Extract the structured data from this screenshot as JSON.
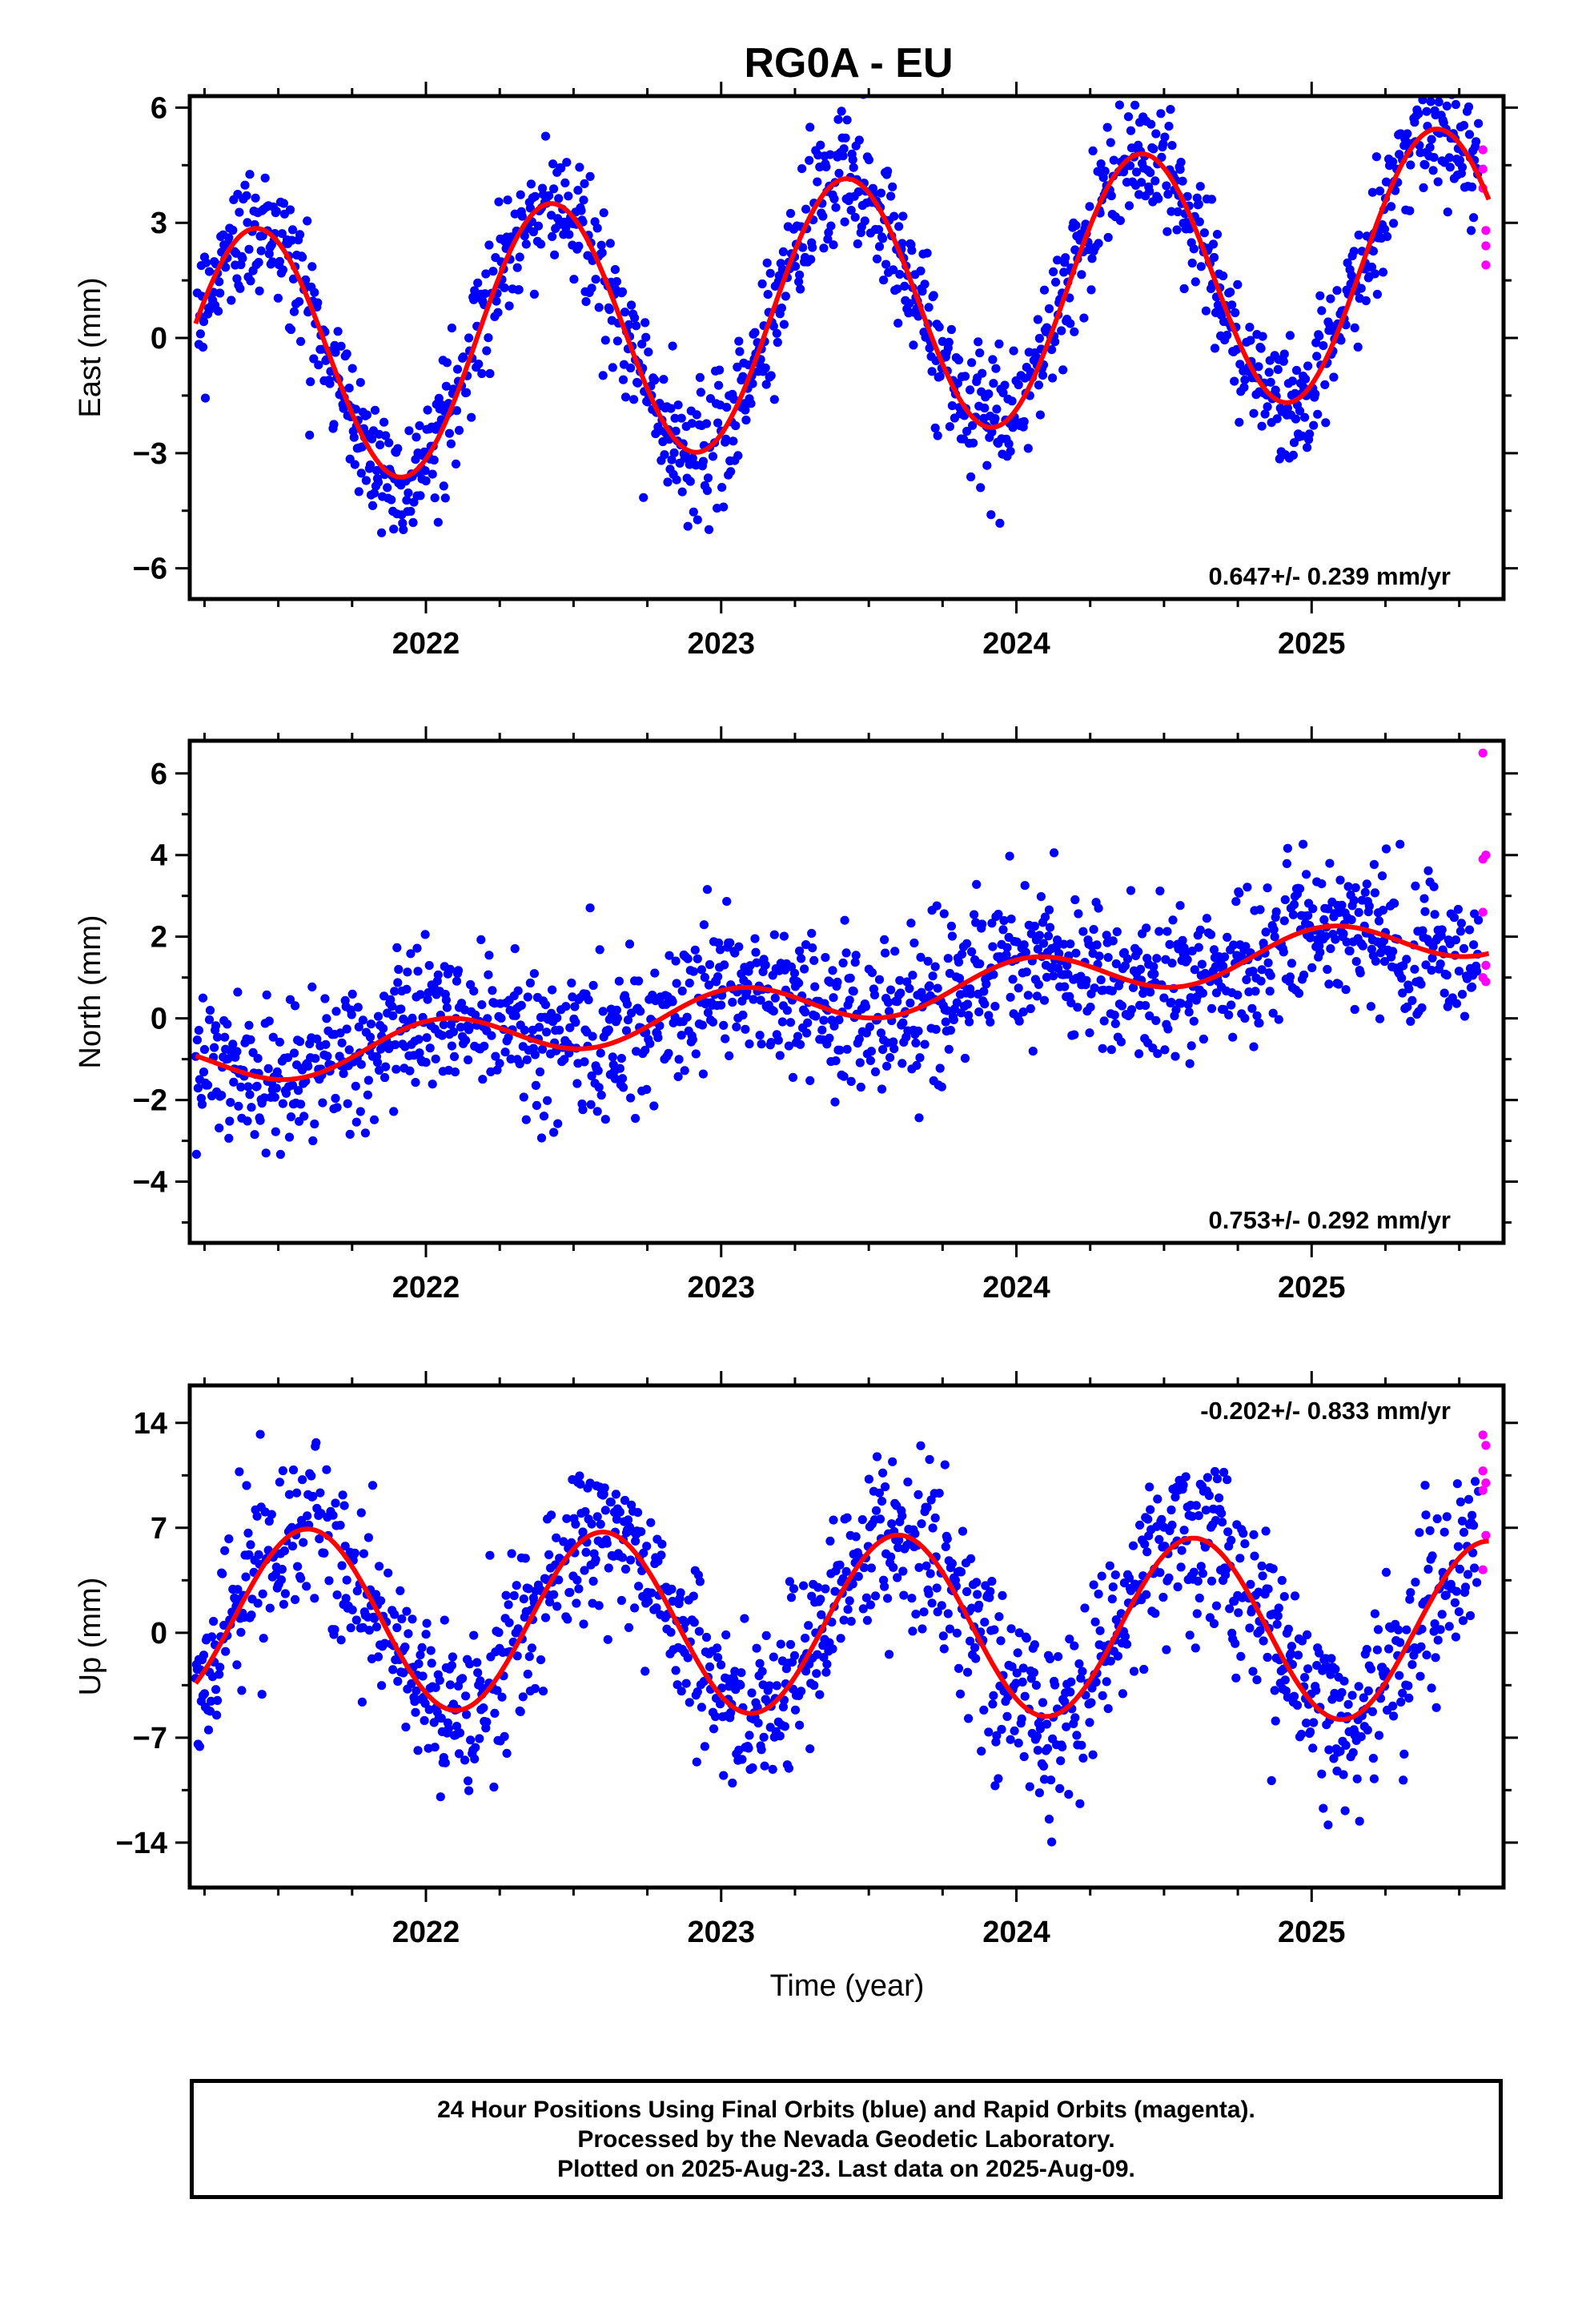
{
  "chart_data": {
    "title": "RG0A - EU",
    "type": "scatter",
    "xlabel": "Time (year)",
    "xlim": [
      2021.2,
      2025.65
    ],
    "x_ticks": [
      2022,
      2023,
      2024,
      2025
    ],
    "grid": false,
    "colors": {
      "final": "#0000ff",
      "rapid": "#ff00ff",
      "fit": "#ff0000",
      "frame": "#000000"
    },
    "legend": "caption box below plots",
    "panels": [
      {
        "ylabel": "East (mm)",
        "ylim": [
          -6.8,
          6.3
        ],
        "y_ticks": [
          6,
          3,
          0,
          -3,
          -6
        ],
        "y_tick_labels": [
          "6",
          "3",
          "0",
          "−3",
          "−6"
        ],
        "rate_label": "0.647+/- 0.239 mm/yr",
        "rate_position": "bottom-right",
        "fit": {
          "offset": -0.69,
          "trend": 0.647,
          "amplitude": 3.4,
          "phase_peak": 0.42
        },
        "scatter": {
          "sigma": 0.85
        },
        "series": [
          {
            "name": "Final Orbits",
            "color": "#0000ff"
          },
          {
            "name": "Rapid Orbits",
            "color": "#ff00ff",
            "points": [
              [
                2025.58,
                4.9
              ],
              [
                2025.58,
                4.4
              ],
              [
                2025.58,
                3.9
              ],
              [
                2025.59,
                2.8
              ],
              [
                2025.59,
                2.4
              ],
              [
                2025.59,
                1.9
              ]
            ]
          },
          {
            "name": "Fit",
            "color": "#ff0000"
          }
        ]
      },
      {
        "ylabel": "North (mm)",
        "ylim": [
          -5.5,
          6.8
        ],
        "y_ticks": [
          6,
          4,
          2,
          0,
          -2,
          -4
        ],
        "y_tick_labels": [
          "6",
          "4",
          "2",
          "0",
          "−2",
          "−4"
        ],
        "rate_label": "0.753+/- 0.292 mm/yr",
        "rate_position": "bottom-right",
        "fit": {
          "offset": -1.2,
          "trend": 0.753,
          "amplitude": 0.55,
          "phase_peak": 0.05
        },
        "scatter": {
          "sigma": 0.9
        },
        "series": [
          {
            "name": "Final Orbits",
            "color": "#0000ff"
          },
          {
            "name": "Rapid Orbits",
            "color": "#ff00ff",
            "points": [
              [
                2025.58,
                6.5
              ],
              [
                2025.59,
                4.0
              ],
              [
                2025.58,
                3.9
              ],
              [
                2025.58,
                2.6
              ],
              [
                2025.59,
                1.3
              ],
              [
                2025.58,
                1.0
              ],
              [
                2025.59,
                0.9
              ]
            ]
          },
          {
            "name": "Fit",
            "color": "#ff0000"
          }
        ]
      },
      {
        "ylabel": "Up (mm)",
        "ylim": [
          -17,
          16.5
        ],
        "y_ticks": [
          14,
          7,
          0,
          -7,
          -14
        ],
        "y_tick_labels": [
          "14",
          "7",
          "0",
          "−7",
          "−14"
        ],
        "rate_label": "-0.202+/- 0.833 mm/yr",
        "rate_position": "top-right",
        "fit": {
          "offset": 1.0,
          "trend": -0.202,
          "amplitude": 6.0,
          "phase_peak": 0.6
        },
        "scatter": {
          "sigma": 2.8
        },
        "series": [
          {
            "name": "Final Orbits",
            "color": "#0000ff"
          },
          {
            "name": "Rapid Orbits",
            "color": "#ff00ff",
            "points": [
              [
                2025.58,
                13.2
              ],
              [
                2025.59,
                12.5
              ],
              [
                2025.58,
                10.8
              ],
              [
                2025.59,
                10.0
              ],
              [
                2025.58,
                9.5
              ],
              [
                2025.59,
                6.5
              ],
              [
                2025.58,
                4.2
              ]
            ]
          },
          {
            "name": "Fit",
            "color": "#ff0000"
          }
        ]
      }
    ]
  },
  "caption": {
    "lines": [
      "24 Hour Positions Using Final Orbits (blue) and Rapid Orbits (magenta).",
      "Processed by the Nevada Geodetic Laboratory.",
      "Plotted on 2025-Aug-23. Last data on 2025-Aug-09."
    ]
  }
}
